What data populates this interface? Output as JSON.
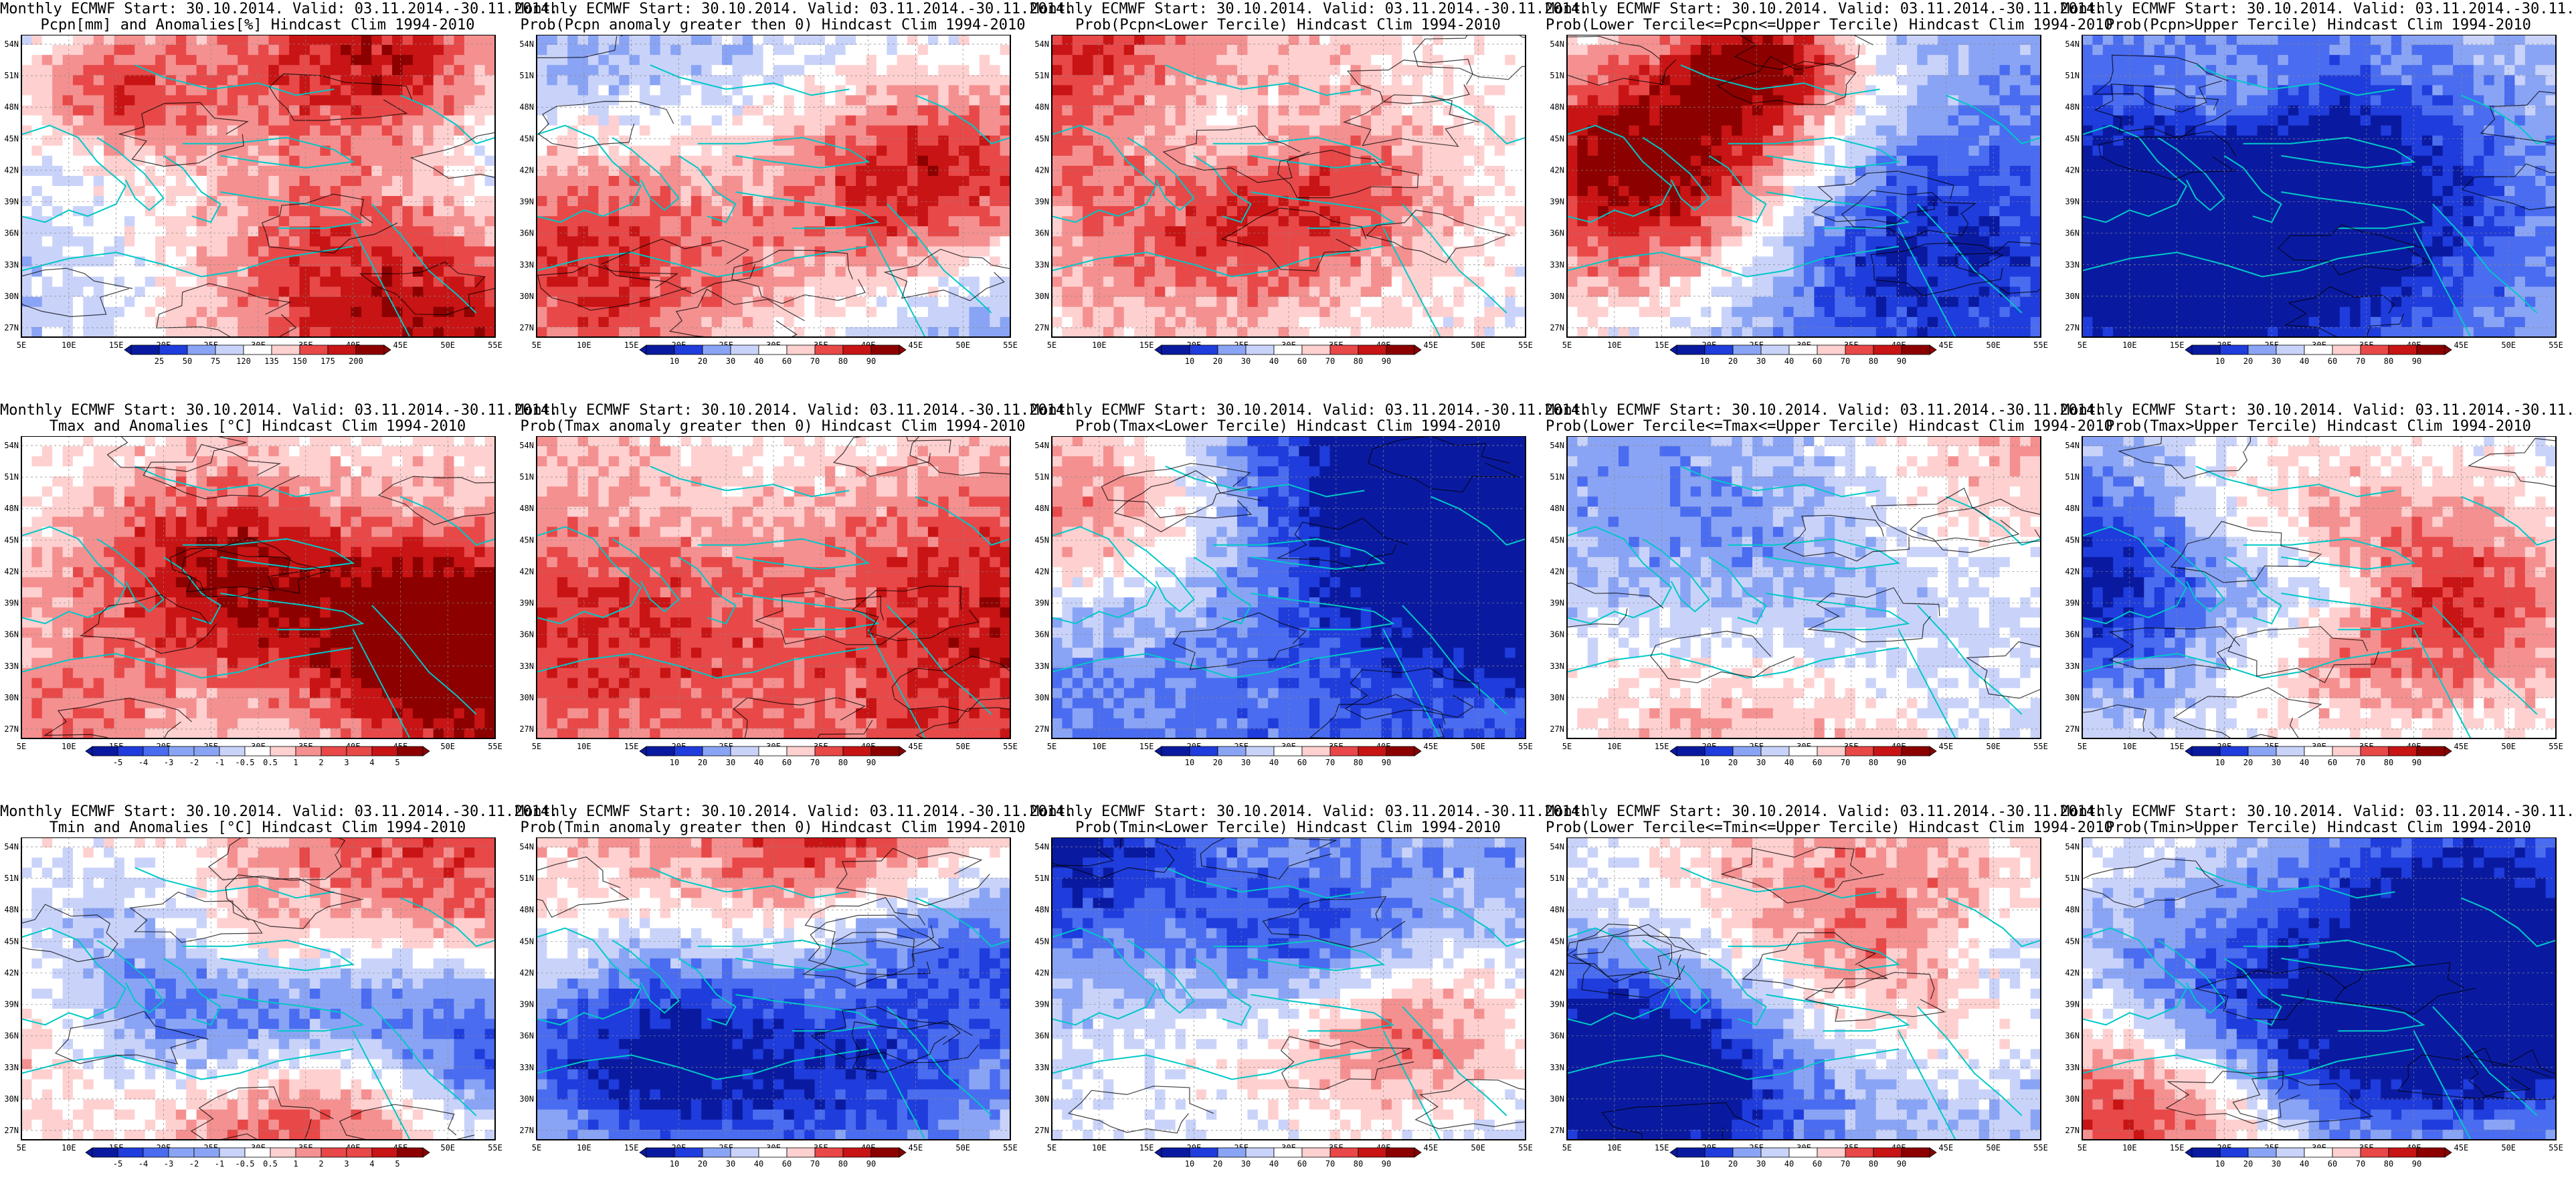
{
  "title_prefix": "Monthly ECMWF Start: 30.10.2014. Valid: 03.11.2014.-30.11.2014.",
  "axes": {
    "lon_labels": [
      "5E",
      "10E",
      "15E",
      "20E",
      "25E",
      "30E",
      "35E",
      "40E",
      "45E",
      "50E",
      "55E"
    ],
    "lat_labels": [
      "54N",
      "51N",
      "48N",
      "45N",
      "42N",
      "39N",
      "36N",
      "33N",
      "30N",
      "27N"
    ]
  },
  "colorbars": {
    "pcpn_anom": [
      "25",
      "50",
      "75",
      "120",
      "135",
      "150",
      "175",
      "200"
    ],
    "temp_anom": [
      "-5",
      "-4",
      "-3",
      "-2",
      "-1",
      "-0.5",
      "0.5",
      "1",
      "2",
      "3",
      "4",
      "5"
    ],
    "prob": [
      "10",
      "20",
      "30",
      "40",
      "60",
      "70",
      "80",
      "90"
    ]
  },
  "palettes": {
    "blue_white_red": [
      "#0a1aa0",
      "#1f3cdc",
      "#4a6cf0",
      "#8aa4f5",
      "#c9d3fa",
      "#ffffff",
      "#ffd0d0",
      "#f59090",
      "#e84848",
      "#c81414",
      "#8c0000"
    ]
  },
  "panels": [
    {
      "row": 0,
      "col": 0,
      "title": "Pcpn[mm] and Anomalies[%] Hindcast Clim 1994-2010",
      "cbar": "pcpn_anom",
      "bias": -0.35,
      "seed": 11
    },
    {
      "row": 0,
      "col": 1,
      "title": "Prob(Pcpn anomaly greater then 0) Hindcast Clim 1994-2010",
      "cbar": "prob",
      "bias": -0.35,
      "seed": 12
    },
    {
      "row": 0,
      "col": 2,
      "title": "Prob(Pcpn<Lower Tercile) Hindcast Clim 1994-2010",
      "cbar": "prob",
      "bias": -0.05,
      "seed": 13
    },
    {
      "row": 0,
      "col": 3,
      "title": "Prob(Lower Tercile<=Pcpn<=Upper Tercile) Hindcast Clim 1994-2010",
      "cbar": "prob",
      "bias": -0.5,
      "seed": 14
    },
    {
      "row": 0,
      "col": 4,
      "title": "Prob(Pcpn>Upper Tercile) Hindcast Clim 1994-2010",
      "cbar": "prob",
      "bias": -0.45,
      "seed": 15
    },
    {
      "row": 1,
      "col": 0,
      "title": "Tmax and Anomalies [°C] Hindcast Clim 1994-2010",
      "cbar": "temp_anom",
      "bias": 0.1,
      "seed": 21
    },
    {
      "row": 1,
      "col": 1,
      "title": "Prob(Tmax anomaly greater then 0) Hindcast Clim 1994-2010",
      "cbar": "prob",
      "bias": 0.35,
      "seed": 22
    },
    {
      "row": 1,
      "col": 2,
      "title": "Prob(Tmax<Lower Tercile) Hindcast Clim 1994-2010",
      "cbar": "prob",
      "bias": -0.55,
      "seed": 23
    },
    {
      "row": 1,
      "col": 3,
      "title": "Prob(Lower Tercile<=Tmax<=Upper Tercile) Hindcast Clim 1994-2010",
      "cbar": "prob",
      "bias": -0.25,
      "seed": 24
    },
    {
      "row": 1,
      "col": 4,
      "title": "Prob(Tmax>Upper Tercile) Hindcast Clim 1994-2010",
      "cbar": "prob",
      "bias": 0.0,
      "seed": 25
    },
    {
      "row": 2,
      "col": 0,
      "title": "Tmin and Anomalies [°C] Hindcast Clim 1994-2010",
      "cbar": "temp_anom",
      "bias": 0.1,
      "seed": 31
    },
    {
      "row": 2,
      "col": 1,
      "title": "Prob(Tmin anomaly greater then 0) Hindcast Clim 1994-2010",
      "cbar": "prob",
      "bias": 0.35,
      "seed": 32
    },
    {
      "row": 2,
      "col": 2,
      "title": "Prob(Tmin<Lower Tercile) Hindcast Clim 1994-2010",
      "cbar": "prob",
      "bias": -0.55,
      "seed": 33
    },
    {
      "row": 2,
      "col": 3,
      "title": "Prob(Lower Tercile<=Tmin<=Upper Tercile) Hindcast Clim 1994-2010",
      "cbar": "prob",
      "bias": -0.3,
      "seed": 34
    },
    {
      "row": 2,
      "col": 4,
      "title": "Prob(Tmin>Upper Tercile) Hindcast Clim 1994-2010",
      "cbar": "prob",
      "bias": 0.0,
      "seed": 35
    }
  ]
}
